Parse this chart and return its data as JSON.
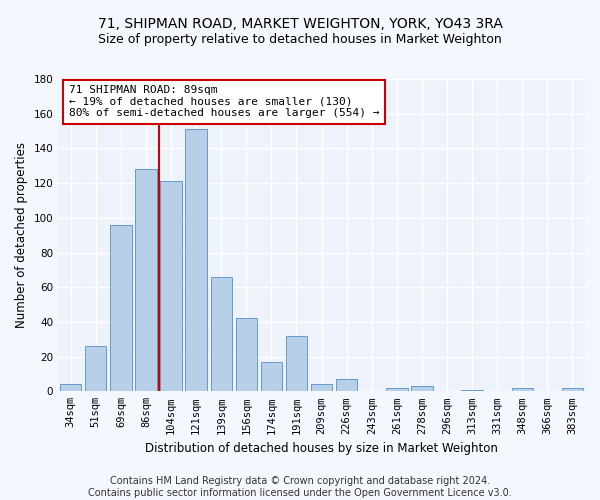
{
  "title": "71, SHIPMAN ROAD, MARKET WEIGHTON, YORK, YO43 3RA",
  "subtitle": "Size of property relative to detached houses in Market Weighton",
  "xlabel": "Distribution of detached houses by size in Market Weighton",
  "ylabel": "Number of detached properties",
  "categories": [
    "34sqm",
    "51sqm",
    "69sqm",
    "86sqm",
    "104sqm",
    "121sqm",
    "139sqm",
    "156sqm",
    "174sqm",
    "191sqm",
    "209sqm",
    "226sqm",
    "243sqm",
    "261sqm",
    "278sqm",
    "296sqm",
    "313sqm",
    "331sqm",
    "348sqm",
    "366sqm",
    "383sqm"
  ],
  "values": [
    4,
    26,
    96,
    128,
    121,
    151,
    66,
    42,
    17,
    32,
    4,
    7,
    0,
    2,
    3,
    0,
    1,
    0,
    2,
    0,
    2
  ],
  "bar_color": "#b8cfe8",
  "bar_edge_color": "#6699cc",
  "vline_x": 3.5,
  "vline_color": "#cc0000",
  "annotation_text": "71 SHIPMAN ROAD: 89sqm\n← 19% of detached houses are smaller (130)\n80% of semi-detached houses are larger (554) →",
  "annotation_box_color": "#ffffff",
  "annotation_box_edge": "#cc0000",
  "ylim": [
    0,
    180
  ],
  "yticks": [
    0,
    20,
    40,
    60,
    80,
    100,
    120,
    140,
    160,
    180
  ],
  "footer_line1": "Contains HM Land Registry data © Crown copyright and database right 2024.",
  "footer_line2": "Contains public sector information licensed under the Open Government Licence v3.0.",
  "bg_color": "#eef2fb",
  "grid_color": "#ffffff",
  "fig_bg_color": "#f5f7ff",
  "title_fontsize": 10,
  "subtitle_fontsize": 9,
  "axis_label_fontsize": 8.5,
  "tick_fontsize": 7.5,
  "annotation_fontsize": 8,
  "footer_fontsize": 7
}
